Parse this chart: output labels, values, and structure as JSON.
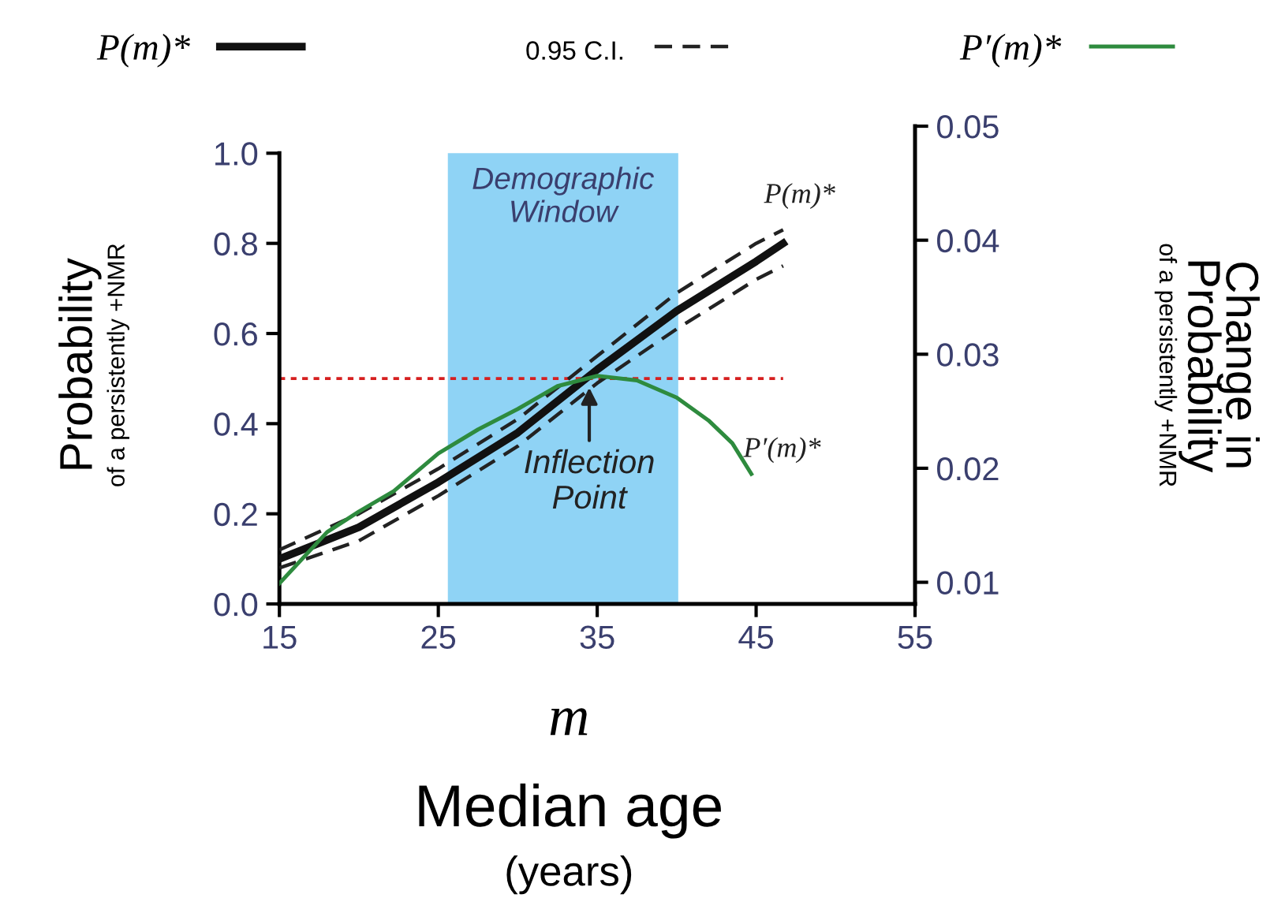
{
  "chart_data": {
    "type": "line",
    "xlabel": "m\nMedian age\n(years)",
    "ylabel": "Probability\nof a persistently +NMR",
    "y2label": "Change in\nProbability\nof a persistently +NMR",
    "xlim": [
      15,
      55
    ],
    "xticks": [
      15,
      25,
      35,
      45,
      55
    ],
    "ylim": [
      0,
      1.06
    ],
    "yticks": [
      {
        "value": 0,
        "label": "0.0"
      },
      0.2,
      0.4,
      0.6,
      0.8,
      {
        "value": 1,
        "label": "1.0"
      }
    ],
    "y2lim": [
      0.0081,
      0.05
    ],
    "y2ticks": [
      0.01,
      0.02,
      0.03,
      0.04,
      0.05
    ],
    "series": [
      {
        "name": "P(m)*",
        "color": "#111111",
        "line_style": "solid",
        "x": [
          15,
          20,
          25,
          30,
          35,
          40,
          45,
          46.7
        ],
        "values": [
          0.1,
          0.17,
          0.27,
          0.38,
          0.52,
          0.65,
          0.76,
          0.8
        ]
      },
      {
        "name": "0.95 C.I.",
        "color": "#222222",
        "line_style": "dashed",
        "x": [
          15,
          20,
          25,
          30,
          35,
          40,
          45,
          46.7
        ],
        "values": [
          0.12,
          0.2,
          0.3,
          0.41,
          0.55,
          0.69,
          0.8,
          0.83
        ]
      },
      {
        "color": "#222222",
        "line_style": "dashed",
        "x": [
          15,
          20,
          25,
          30,
          35,
          40,
          45,
          46.7
        ],
        "values": [
          0.08,
          0.14,
          0.24,
          0.35,
          0.49,
          0.61,
          0.72,
          0.75
        ]
      },
      {
        "name": "P′(m)*",
        "color": "#2e8b3e",
        "line_style": "solid",
        "axis": "y2",
        "x": [
          15,
          18,
          20,
          22.2,
          25,
          27.5,
          30,
          32.5,
          35,
          37.5,
          40,
          42,
          43.5,
          44.7
        ],
        "values": [
          0.0099,
          0.0144,
          0.0162,
          0.018,
          0.0213,
          0.0234,
          0.0252,
          0.0272,
          0.0281,
          0.0277,
          0.0262,
          0.0242,
          0.0222,
          0.0195
        ]
      }
    ],
    "bands": [
      {
        "axis": "x",
        "from": 25.6,
        "to": 40.1,
        "label": "Demographic Window",
        "color": "#8fd3f5"
      }
    ],
    "ref_lines": [
      {
        "axis": "y",
        "value": 0.5,
        "color": "#d62020",
        "line_style": "dotted"
      }
    ],
    "annotations": [
      {
        "text": "Inflection Point",
        "x": 34.5,
        "y": 0.49
      },
      {
        "text": "P(m)*",
        "x": 46.7,
        "y": 0.83
      },
      "P′(m)*"
    ],
    "marker": "none",
    "grid": false,
    "legend": "top"
  }
}
